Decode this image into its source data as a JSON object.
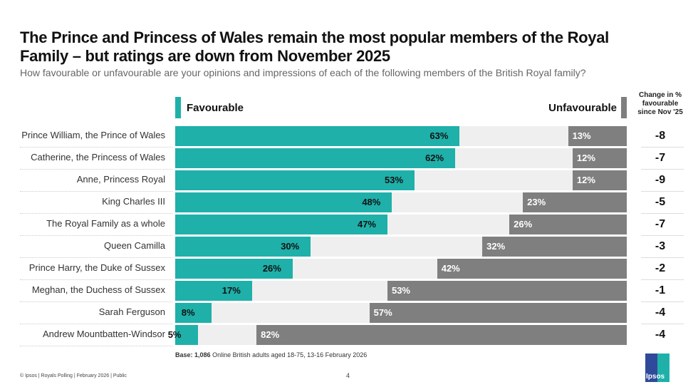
{
  "title": "The Prince and Princess of Wales remain the most popular members of the Royal Family – but ratings are down from November 2025",
  "subtitle": "How favourable or unfavourable are your opinions and impressions of each of the following members of the British Royal family?",
  "legend": {
    "favourable": "Favourable",
    "unfavourable": "Unfavourable"
  },
  "change_header": "Change in % favourable since Nov '25",
  "colors": {
    "favourable": "#1fb0aa",
    "unfavourable": "#7f7f7f",
    "background": "#efefef"
  },
  "chart_data": {
    "type": "bar",
    "categories": [
      "Prince William, the Prince of Wales",
      "Catherine, the Princess of Wales",
      "Anne, Princess Royal",
      "King Charles III",
      "The Royal Family as a whole",
      "Queen Camilla",
      "Prince Harry, the Duke of Sussex",
      "Meghan, the Duchess of Sussex",
      "Sarah Ferguson",
      "Andrew Mountbatten-Windsor"
    ],
    "series": [
      {
        "name": "Favourable",
        "values": [
          63,
          62,
          53,
          48,
          47,
          30,
          26,
          17,
          8,
          5
        ]
      },
      {
        "name": "Unfavourable",
        "values": [
          13,
          12,
          12,
          23,
          26,
          32,
          42,
          53,
          57,
          82
        ]
      }
    ],
    "change": [
      "-8",
      "-7",
      "-9",
      "-5",
      "-7",
      "-3",
      "-2",
      "-1",
      "-4",
      "-4"
    ],
    "xlim": [
      0,
      100
    ]
  },
  "base": {
    "label": "Base:",
    "n": "1,086",
    "text": "Online British adults aged 18-75, 13-16 February 2026"
  },
  "footer": "© Ipsos | Royals Polling | February 2026 | Public",
  "page_number": "4",
  "logo": "Ipsos"
}
